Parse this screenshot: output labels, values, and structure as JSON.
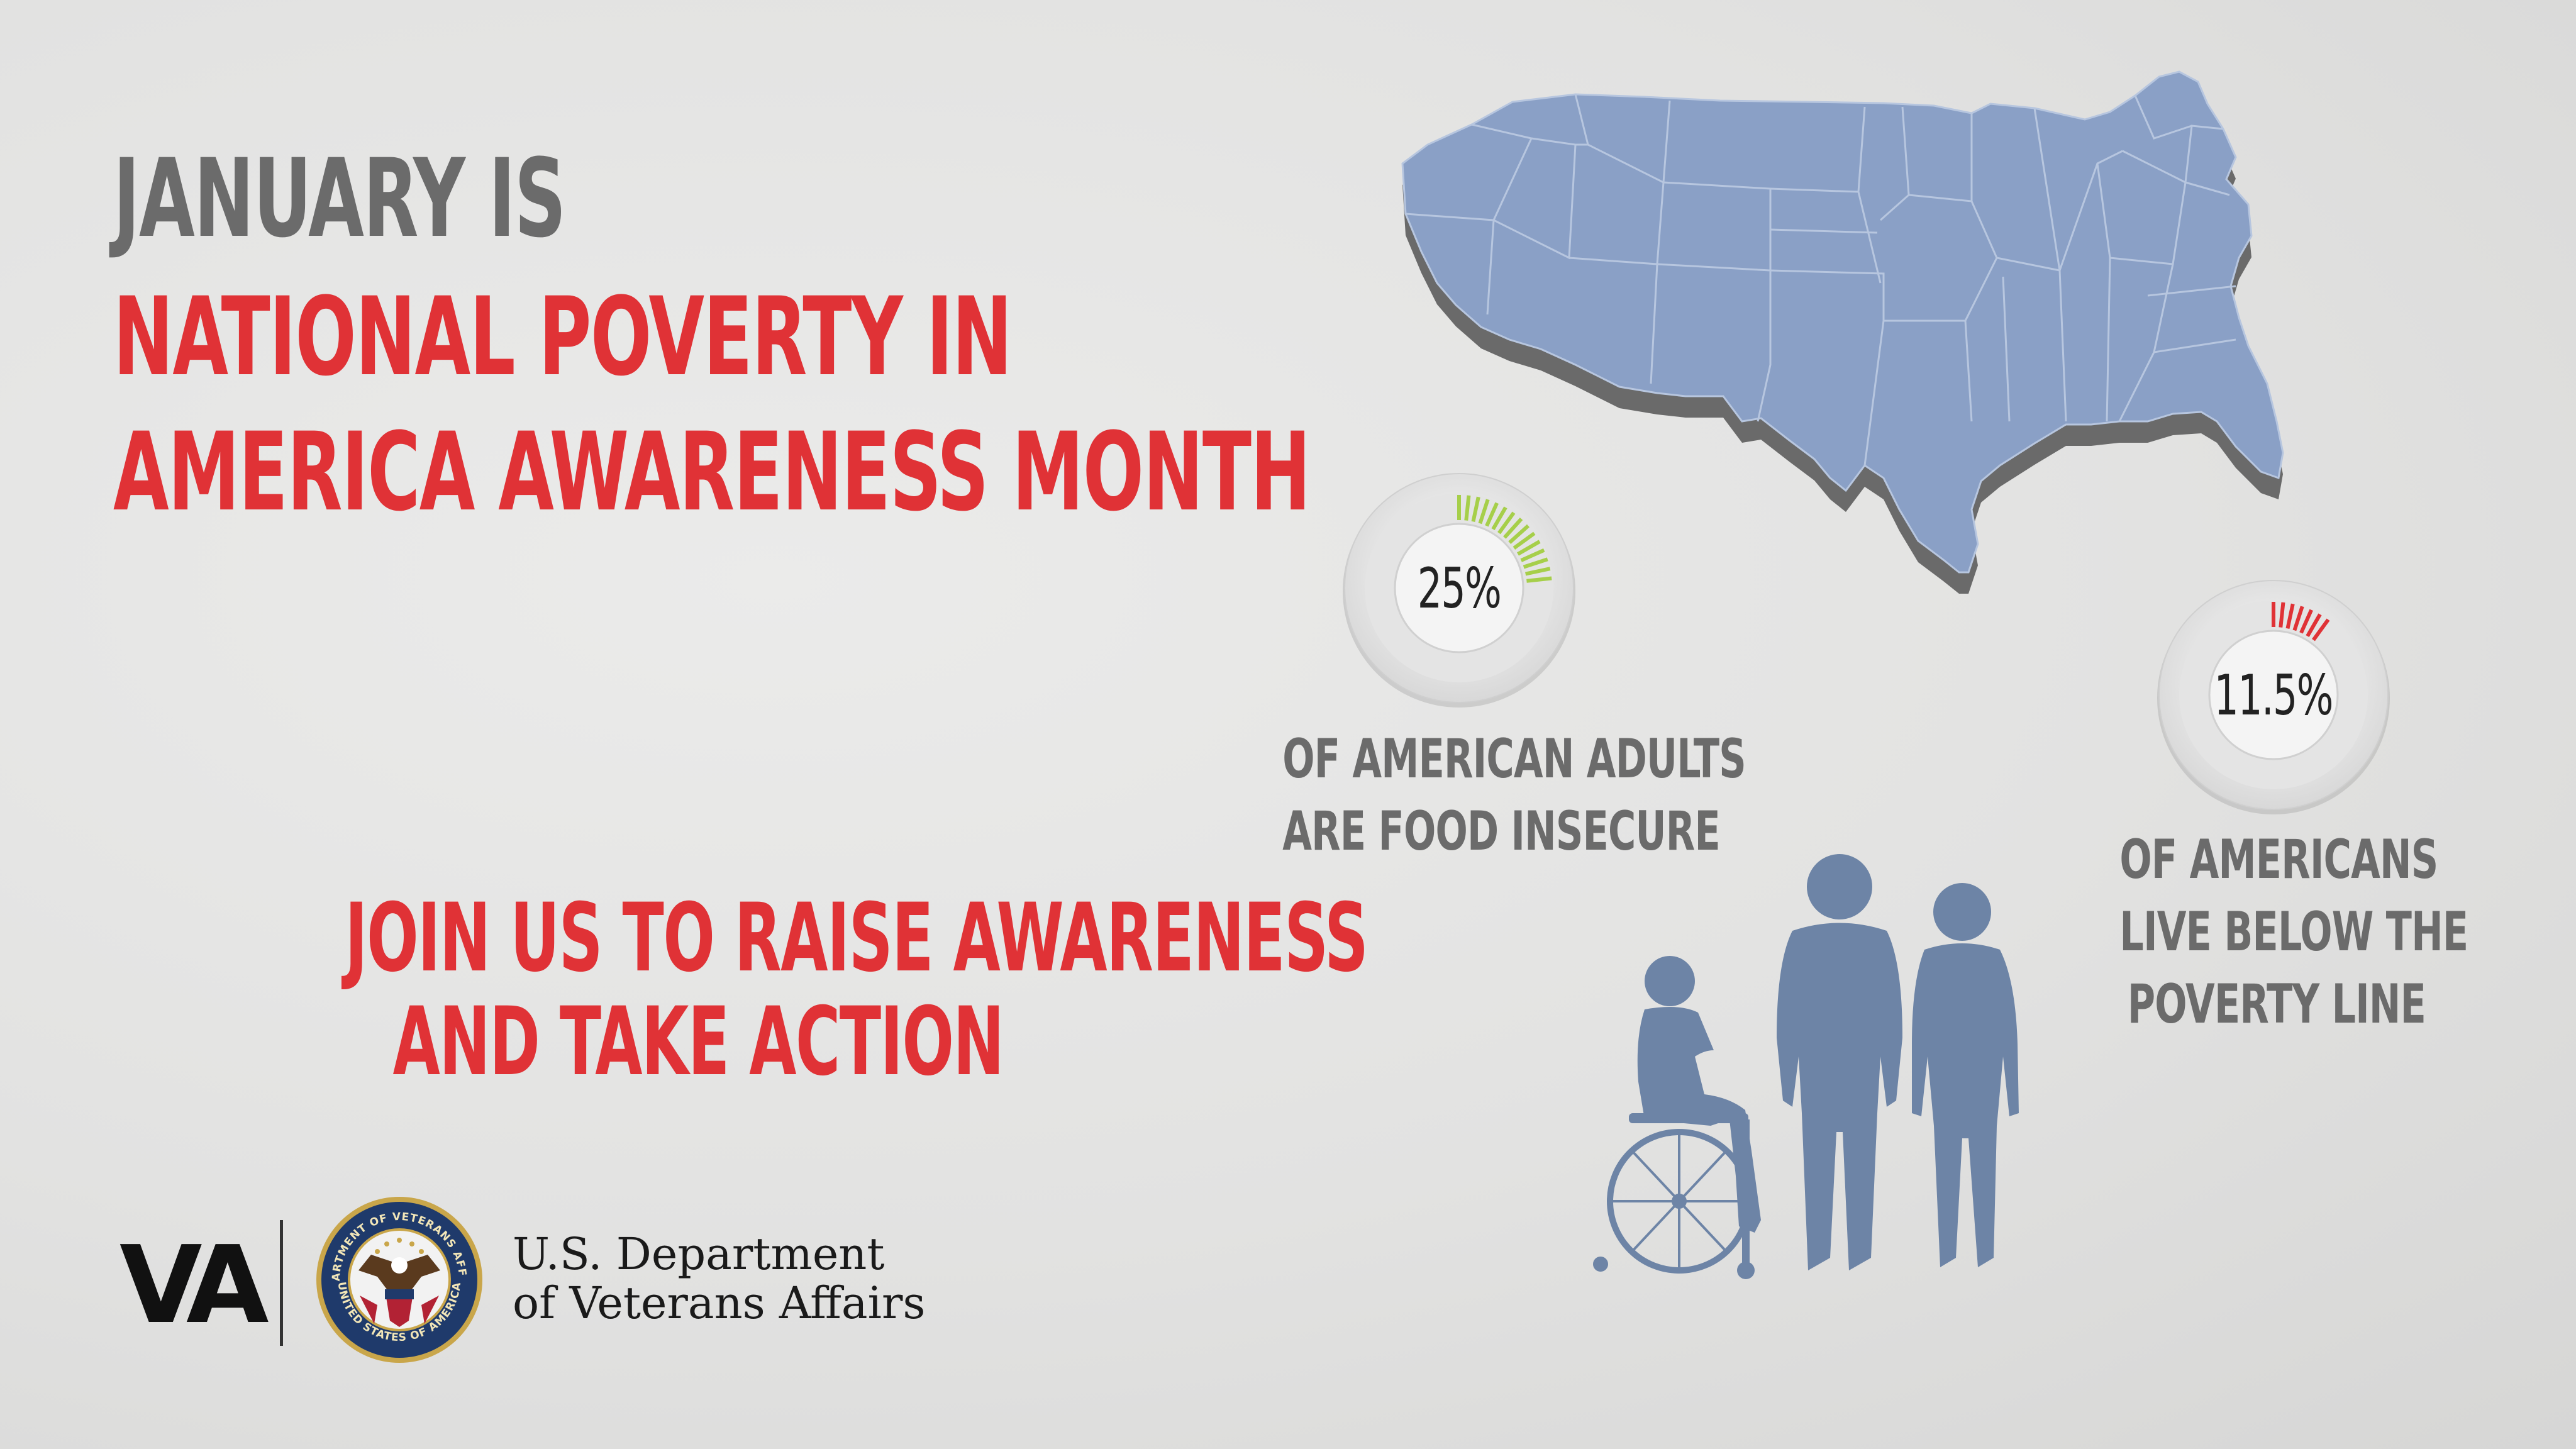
{
  "headline": {
    "line1": "JANUARY IS",
    "line2": "NATIONAL POVERTY IN",
    "line3": "AMERICA AWARENESS MONTH"
  },
  "call_to_action": {
    "line1": "JOIN US TO RAISE AWARENESS",
    "line2": "AND TAKE ACTION"
  },
  "stats": [
    {
      "value": "25%",
      "fraction": 0.25,
      "color": "#a6cf4a",
      "line1": "OF AMERICAN ADULTS",
      "line2": "ARE FOOD INSECURE"
    },
    {
      "value": "11.5%",
      "fraction": 0.115,
      "color": "#e03236",
      "line1": "OF AMERICANS",
      "line2": "LIVE BELOW THE",
      "line3": "POVERTY LINE"
    }
  ],
  "branding": {
    "abbrev": "VA",
    "name_line1": "U.S. Department",
    "name_line2": "of Veterans Affairs",
    "seal_text_top": "DEPARTMENT OF VETERANS AFFAIRS",
    "seal_text_bottom": "UNITED STATES OF AMERICA"
  },
  "colors": {
    "headline_gray": "#6b6b6b",
    "accent_red": "#e03236",
    "map_blue": "#8aa0c6",
    "silhouette_blue": "#6d84a6"
  },
  "icons": [
    "us-map-icon",
    "people-silhouette-icon",
    "va-seal-icon"
  ]
}
